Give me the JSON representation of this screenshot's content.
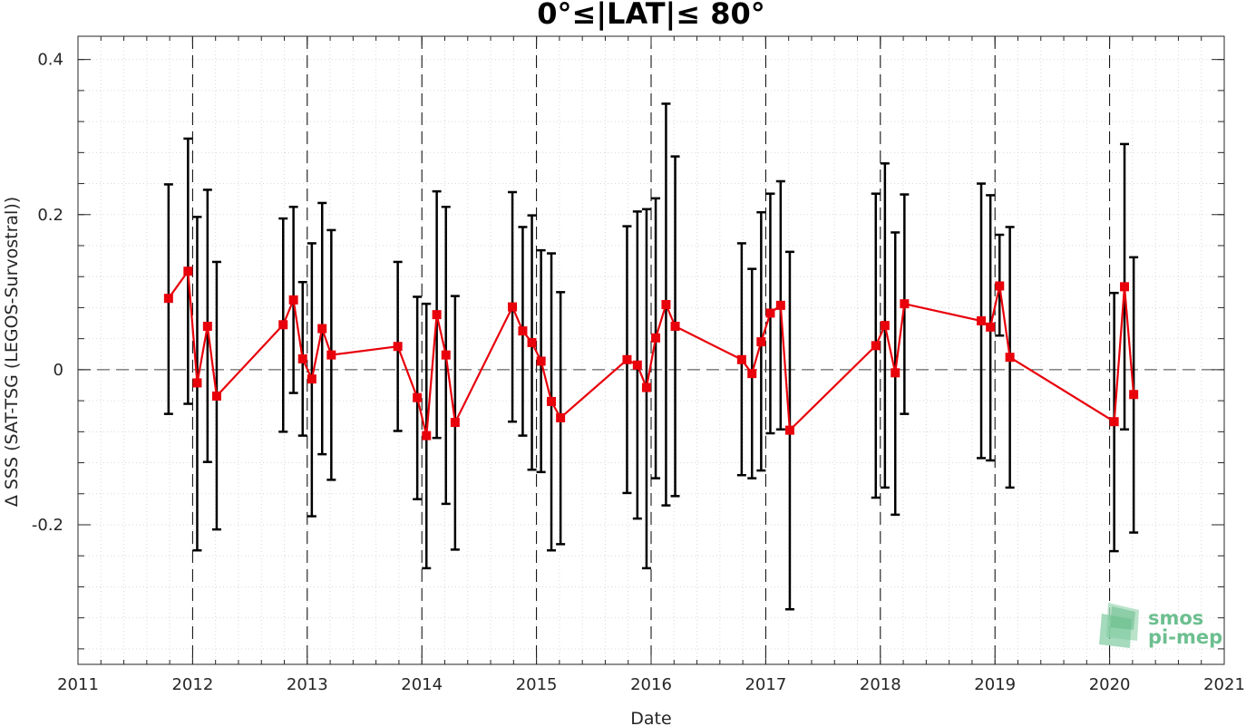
{
  "chart_data": {
    "type": "scatter",
    "title": "0°≤|LAT|≤ 80°",
    "xlabel": "Date",
    "ylabel": "Δ SSS (SAT-TSG (LEGOS-Survostral))",
    "xlim": [
      2011,
      2021
    ],
    "ylim": [
      -0.38,
      0.43
    ],
    "x_ticks": [
      2011,
      2012,
      2013,
      2014,
      2015,
      2016,
      2017,
      2018,
      2019,
      2020,
      2021
    ],
    "y_ticks": [
      -0.2,
      0,
      0.2,
      0.4
    ],
    "x_tick_labels": [
      "2011",
      "2012",
      "2013",
      "2014",
      "2015",
      "2016",
      "2017",
      "2018",
      "2019",
      "2020",
      "2021"
    ],
    "y_tick_labels": [
      "-0.2",
      "0",
      "0.2",
      "0.4"
    ],
    "grid": "dotted",
    "year_separators": [
      2012,
      2013,
      2014,
      2015,
      2016,
      2017,
      2018,
      2019,
      2020
    ],
    "zero_line": true,
    "colors": {
      "line": "#e8000b",
      "errorbar": "#000000"
    },
    "series": [
      {
        "style": "line-with-square-markers and vertical error bars",
        "points": [
          {
            "x": 2011.79,
            "y": 0.092,
            "lo": -0.057,
            "hi": 0.239
          },
          {
            "x": 2011.96,
            "y": 0.127,
            "lo": -0.044,
            "hi": 0.298
          },
          {
            "x": 2012.04,
            "y": -0.017,
            "lo": -0.233,
            "hi": 0.197
          },
          {
            "x": 2012.13,
            "y": 0.056,
            "lo": -0.119,
            "hi": 0.232
          },
          {
            "x": 2012.21,
            "y": -0.034,
            "lo": -0.206,
            "hi": 0.139
          },
          {
            "x": 2012.79,
            "y": 0.058,
            "lo": -0.08,
            "hi": 0.195
          },
          {
            "x": 2012.88,
            "y": 0.09,
            "lo": -0.03,
            "hi": 0.21
          },
          {
            "x": 2012.96,
            "y": 0.014,
            "lo": -0.085,
            "hi": 0.113
          },
          {
            "x": 2013.04,
            "y": -0.012,
            "lo": -0.189,
            "hi": 0.163
          },
          {
            "x": 2013.13,
            "y": 0.053,
            "lo": -0.109,
            "hi": 0.215
          },
          {
            "x": 2013.21,
            "y": 0.019,
            "lo": -0.142,
            "hi": 0.18
          },
          {
            "x": 2013.79,
            "y": 0.03,
            "lo": -0.079,
            "hi": 0.139
          },
          {
            "x": 2013.96,
            "y": -0.036,
            "lo": -0.167,
            "hi": 0.094
          },
          {
            "x": 2014.04,
            "y": -0.085,
            "lo": -0.256,
            "hi": 0.085
          },
          {
            "x": 2014.13,
            "y": 0.071,
            "lo": -0.088,
            "hi": 0.23
          },
          {
            "x": 2014.21,
            "y": 0.019,
            "lo": -0.173,
            "hi": 0.21
          },
          {
            "x": 2014.29,
            "y": -0.068,
            "lo": -0.232,
            "hi": 0.095
          },
          {
            "x": 2014.79,
            "y": 0.081,
            "lo": -0.067,
            "hi": 0.229
          },
          {
            "x": 2014.88,
            "y": 0.05,
            "lo": -0.085,
            "hi": 0.184
          },
          {
            "x": 2014.96,
            "y": 0.035,
            "lo": -0.129,
            "hi": 0.199
          },
          {
            "x": 2015.04,
            "y": 0.011,
            "lo": -0.132,
            "hi": 0.154
          },
          {
            "x": 2015.13,
            "y": -0.041,
            "lo": -0.233,
            "hi": 0.15
          },
          {
            "x": 2015.21,
            "y": -0.062,
            "lo": -0.225,
            "hi": 0.1
          },
          {
            "x": 2015.79,
            "y": 0.013,
            "lo": -0.159,
            "hi": 0.185
          },
          {
            "x": 2015.88,
            "y": 0.006,
            "lo": -0.192,
            "hi": 0.204
          },
          {
            "x": 2015.96,
            "y": -0.023,
            "lo": -0.256,
            "hi": 0.207
          },
          {
            "x": 2016.04,
            "y": 0.041,
            "lo": -0.14,
            "hi": 0.221
          },
          {
            "x": 2016.13,
            "y": 0.084,
            "lo": -0.175,
            "hi": 0.343
          },
          {
            "x": 2016.21,
            "y": 0.056,
            "lo": -0.163,
            "hi": 0.275
          },
          {
            "x": 2016.79,
            "y": 0.013,
            "lo": -0.136,
            "hi": 0.163
          },
          {
            "x": 2016.88,
            "y": -0.005,
            "lo": -0.14,
            "hi": 0.13
          },
          {
            "x": 2016.96,
            "y": 0.036,
            "lo": -0.13,
            "hi": 0.203
          },
          {
            "x": 2017.04,
            "y": 0.073,
            "lo": -0.082,
            "hi": 0.227
          },
          {
            "x": 2017.13,
            "y": 0.083,
            "lo": -0.077,
            "hi": 0.243
          },
          {
            "x": 2017.21,
            "y": -0.078,
            "lo": -0.309,
            "hi": 0.152
          },
          {
            "x": 2017.96,
            "y": 0.031,
            "lo": -0.165,
            "hi": 0.227
          },
          {
            "x": 2018.04,
            "y": 0.057,
            "lo": -0.152,
            "hi": 0.266
          },
          {
            "x": 2018.13,
            "y": -0.004,
            "lo": -0.187,
            "hi": 0.177
          },
          {
            "x": 2018.21,
            "y": 0.085,
            "lo": -0.057,
            "hi": 0.226
          },
          {
            "x": 2018.88,
            "y": 0.063,
            "lo": -0.114,
            "hi": 0.24
          },
          {
            "x": 2018.96,
            "y": 0.055,
            "lo": -0.117,
            "hi": 0.225
          },
          {
            "x": 2019.04,
            "y": 0.108,
            "lo": 0.044,
            "hi": 0.174
          },
          {
            "x": 2019.13,
            "y": 0.016,
            "lo": -0.152,
            "hi": 0.184
          },
          {
            "x": 2020.04,
            "y": -0.067,
            "lo": -0.234,
            "hi": 0.099
          },
          {
            "x": 2020.13,
            "y": 0.107,
            "lo": -0.077,
            "hi": 0.291
          },
          {
            "x": 2020.21,
            "y": -0.032,
            "lo": -0.21,
            "hi": 0.145
          }
        ]
      }
    ]
  },
  "logo": {
    "line1": "smos",
    "line2": "pi-mep",
    "color": "#6dbf90"
  }
}
